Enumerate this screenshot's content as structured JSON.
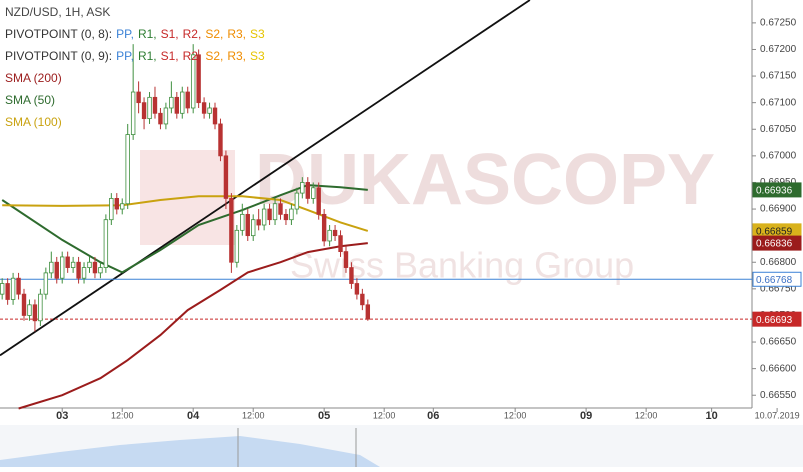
{
  "chart_data": {
    "type": "candlestick",
    "legend": {
      "title": "NZD/USD, 1H, ASK",
      "pivots": [
        {
          "label": "PIVOTPOINT (0, 8):",
          "items": [
            {
              "text": "PP,",
              "color": "#3b82d6"
            },
            {
              "text": "R1,",
              "color": "#2e7d32"
            },
            {
              "text": "S1,",
              "color": "#c62828"
            },
            {
              "text": "R2,",
              "color": "#c62828"
            },
            {
              "text": "S2,",
              "color": "#ef8c00"
            },
            {
              "text": "R3,",
              "color": "#ef8c00"
            },
            {
              "text": "S3",
              "color": "#e6c400"
            }
          ]
        },
        {
          "label": "PIVOTPOINT (0, 9):",
          "items": [
            {
              "text": "PP,",
              "color": "#3b82d6"
            },
            {
              "text": "R1,",
              "color": "#2e7d32"
            },
            {
              "text": "S1,",
              "color": "#c62828"
            },
            {
              "text": "R2,",
              "color": "#c62828"
            },
            {
              "text": "S2,",
              "color": "#ef8c00"
            },
            {
              "text": "R3,",
              "color": "#ef8c00"
            },
            {
              "text": "S3",
              "color": "#e6c400"
            }
          ]
        }
      ]
    },
    "watermark": {
      "brand": "DUKASCOPY",
      "tagline": "Swiss Banking Group"
    },
    "xlim": [
      -11.4,
      126.4
    ],
    "ylim": [
      0.66526,
      0.67293
    ],
    "xticks": [
      {
        "value": 0,
        "label": "03"
      },
      {
        "value": 11,
        "label": "12:00"
      },
      {
        "value": 24,
        "label": "04"
      },
      {
        "value": 35,
        "label": "12:00"
      },
      {
        "value": 48,
        "label": "05"
      },
      {
        "value": 59,
        "label": "12:00"
      },
      {
        "value": 68,
        "label": "06"
      },
      {
        "value": 83,
        "label": "12:00"
      },
      {
        "value": 96,
        "label": "09"
      },
      {
        "value": 107,
        "label": "12:00"
      },
      {
        "value": 119,
        "label": "10"
      },
      {
        "value": 131,
        "label": "10.07.2019"
      }
    ],
    "yticks": [
      {
        "value": 0.6655,
        "label": "0.66550"
      },
      {
        "value": 0.666,
        "label": "0.66600"
      },
      {
        "value": 0.6665,
        "label": "0.66650"
      },
      {
        "value": 0.667,
        "label": "0.66700"
      },
      {
        "value": 0.6675,
        "label": "0.66750"
      },
      {
        "value": 0.668,
        "label": "0.66800"
      },
      {
        "value": 0.6685,
        "label": "0.66850"
      },
      {
        "value": 0.669,
        "label": "0.66900"
      },
      {
        "value": 0.6695,
        "label": "0.66950"
      },
      {
        "value": 0.67,
        "label": "0.67000"
      },
      {
        "value": 0.6705,
        "label": "0.67050"
      },
      {
        "value": 0.671,
        "label": "0.67100"
      },
      {
        "value": 0.6715,
        "label": "0.67150"
      },
      {
        "value": 0.672,
        "label": "0.67200"
      },
      {
        "value": 0.6725,
        "label": "0.67250"
      }
    ],
    "up_color": "#3f8f3f",
    "down_color": "#b83232",
    "x": [
      -11,
      -10,
      -9,
      -8,
      -7,
      -6,
      -5,
      -4,
      -3,
      -2,
      -1,
      0,
      1,
      2,
      3,
      4,
      5,
      6,
      7,
      8,
      9,
      10,
      11,
      12,
      13,
      14,
      15,
      16,
      17,
      18,
      19,
      20,
      21,
      22,
      23,
      24,
      25,
      26,
      27,
      28,
      29,
      30,
      31,
      32,
      33,
      34,
      35,
      36,
      37,
      38,
      39,
      40,
      41,
      42,
      43,
      44,
      45,
      46,
      47,
      48,
      49,
      50,
      51,
      52,
      53,
      54,
      55,
      56
    ],
    "open": [
      0.6674,
      0.6676,
      0.6673,
      0.6677,
      0.6674,
      0.667,
      0.6672,
      0.6669,
      0.6674,
      0.6678,
      0.668,
      0.6677,
      0.6681,
      0.6679,
      0.668,
      0.6677,
      0.6679,
      0.668,
      0.6678,
      0.6679,
      0.6688,
      0.6692,
      0.669,
      0.6691,
      0.6704,
      0.6712,
      0.671,
      0.6707,
      0.6711,
      0.6708,
      0.6706,
      0.6709,
      0.6711,
      0.6708,
      0.6712,
      0.6709,
      0.6719,
      0.671,
      0.6708,
      0.6709,
      0.6706,
      0.67,
      0.6692,
      0.668,
      0.6686,
      0.6689,
      0.6685,
      0.6688,
      0.6687,
      0.669,
      0.6688,
      0.6691,
      0.6689,
      0.6688,
      0.669,
      0.6693,
      0.6695,
      0.6692,
      0.6694,
      0.6689,
      0.6684,
      0.6686,
      0.6685,
      0.6682,
      0.6679,
      0.6676,
      0.6674,
      0.6672
    ],
    "high": [
      0.6677,
      0.6677,
      0.6678,
      0.6678,
      0.6675,
      0.6673,
      0.6673,
      0.6675,
      0.6679,
      0.6682,
      0.6681,
      0.6682,
      0.6682,
      0.6681,
      0.6681,
      0.668,
      0.6681,
      0.6681,
      0.668,
      0.6689,
      0.6693,
      0.6693,
      0.6692,
      0.6706,
      0.6721,
      0.6714,
      0.6711,
      0.6712,
      0.6713,
      0.6709,
      0.671,
      0.6714,
      0.6712,
      0.6713,
      0.6713,
      0.6721,
      0.672,
      0.6711,
      0.671,
      0.671,
      0.6707,
      0.6701,
      0.6693,
      0.6687,
      0.6691,
      0.669,
      0.6689,
      0.669,
      0.6691,
      0.6691,
      0.6692,
      0.6692,
      0.669,
      0.6691,
      0.6694,
      0.6696,
      0.6696,
      0.6695,
      0.6695,
      0.669,
      0.6687,
      0.6687,
      0.6686,
      0.6683,
      0.668,
      0.6677,
      0.6675,
      0.6673
    ],
    "low": [
      0.6673,
      0.6672,
      0.6672,
      0.6673,
      0.6669,
      0.6669,
      0.6667,
      0.6668,
      0.6673,
      0.6677,
      0.6676,
      0.6676,
      0.6678,
      0.6678,
      0.6676,
      0.6676,
      0.6678,
      0.6677,
      0.6677,
      0.6678,
      0.6687,
      0.6689,
      0.6689,
      0.669,
      0.6703,
      0.6708,
      0.6705,
      0.6706,
      0.6707,
      0.6705,
      0.6705,
      0.6708,
      0.6707,
      0.6707,
      0.6708,
      0.6708,
      0.6709,
      0.6707,
      0.6707,
      0.6705,
      0.6699,
      0.669,
      0.6678,
      0.6679,
      0.6685,
      0.6684,
      0.6684,
      0.6686,
      0.6686,
      0.6687,
      0.6687,
      0.6688,
      0.6687,
      0.6687,
      0.6689,
      0.6692,
      0.6691,
      0.6691,
      0.6688,
      0.6683,
      0.6683,
      0.6684,
      0.6681,
      0.6678,
      0.6675,
      0.6673,
      0.6671,
      0.6669
    ],
    "close": [
      0.6676,
      0.6673,
      0.6677,
      0.6674,
      0.667,
      0.6672,
      0.6669,
      0.6674,
      0.6678,
      0.668,
      0.6677,
      0.6681,
      0.6679,
      0.668,
      0.6677,
      0.6679,
      0.668,
      0.6678,
      0.6679,
      0.6688,
      0.6692,
      0.669,
      0.6691,
      0.6704,
      0.6712,
      0.671,
      0.6707,
      0.6711,
      0.6708,
      0.6706,
      0.6709,
      0.6711,
      0.6708,
      0.6712,
      0.6709,
      0.6719,
      0.671,
      0.6708,
      0.6709,
      0.6706,
      0.67,
      0.6692,
      0.668,
      0.6686,
      0.6689,
      0.6685,
      0.6688,
      0.6687,
      0.669,
      0.6688,
      0.6691,
      0.6689,
      0.6688,
      0.669,
      0.6693,
      0.6695,
      0.6692,
      0.6694,
      0.6689,
      0.6684,
      0.6686,
      0.6685,
      0.6682,
      0.6679,
      0.6676,
      0.6674,
      0.6672,
      0.66693
    ],
    "series": [
      {
        "name": "SMA (200)",
        "color": "#9b1c1c",
        "x": [
          -8,
          0,
          7,
          12,
          18,
          23,
          29,
          34,
          40,
          45,
          51,
          56
        ],
        "values": [
          0.66525,
          0.6655,
          0.66582,
          0.66616,
          0.66663,
          0.6671,
          0.66748,
          0.66781,
          0.668,
          0.66819,
          0.6683,
          0.66836
        ]
      },
      {
        "name": "SMA (50)",
        "color": "#2e6b2e",
        "x": [
          -11,
          0,
          7,
          11,
          18,
          25,
          33,
          40,
          45,
          51,
          56
        ],
        "values": [
          0.66917,
          0.66842,
          0.668,
          0.66781,
          0.66823,
          0.6687,
          0.66898,
          0.66926,
          0.66945,
          0.66941,
          0.66936
        ]
      },
      {
        "name": "SMA (100)",
        "color": "#c9a20f",
        "x": [
          -11,
          0,
          11,
          18,
          25,
          33,
          40,
          45,
          51,
          56
        ],
        "values": [
          0.66907,
          0.66906,
          0.66907,
          0.66917,
          0.66924,
          0.66924,
          0.66917,
          0.66898,
          0.66875,
          0.66859
        ]
      }
    ],
    "trendline": {
      "x": [
        -11.4,
        85.7
      ],
      "values": [
        0.66625,
        0.67293
      ],
      "color": "#111111"
    },
    "price_tags": [
      {
        "value": 0.66936,
        "color": "#2e6b2e",
        "text_color": "#ffffff"
      },
      {
        "value": 0.66859,
        "color": "#d9b21c",
        "text_color": "#222222"
      },
      {
        "value": 0.66836,
        "color": "#9b1c1c",
        "text_color": "#ffffff"
      },
      {
        "value": 0.66768,
        "color": "#ffffff",
        "text_color": "#3b6fc4",
        "line": "solid",
        "line_color": "#3b82d6"
      },
      {
        "value": 0.66693,
        "color": "#c62828",
        "text_color": "#ffffff",
        "line": "dashed",
        "line_color": "#c62828"
      }
    ]
  }
}
